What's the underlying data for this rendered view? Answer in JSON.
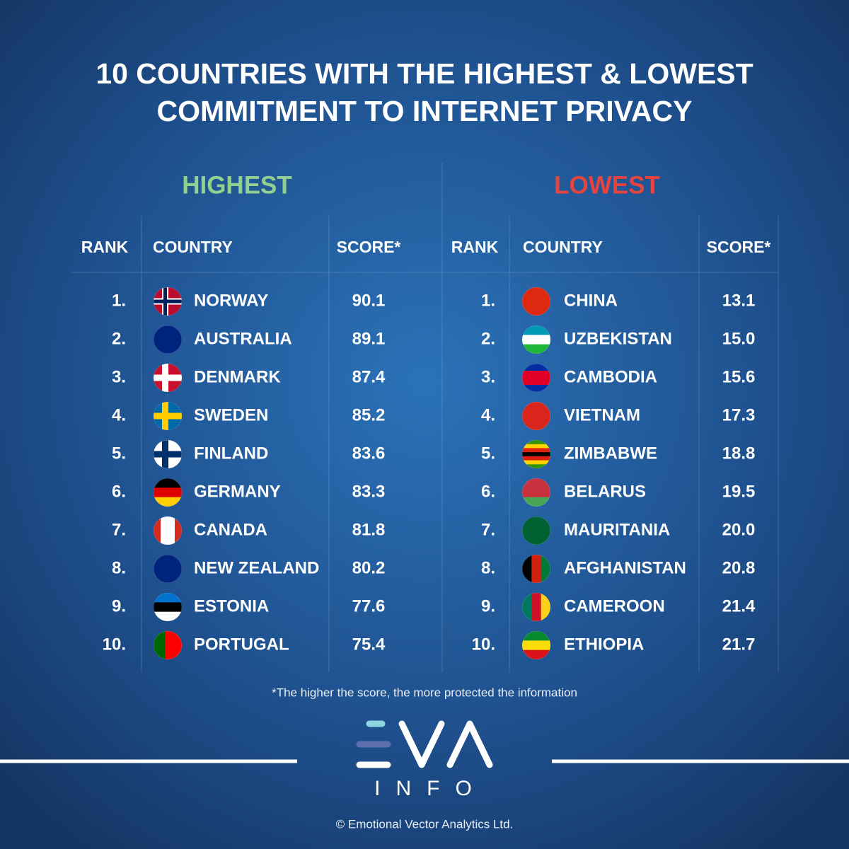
{
  "title": [
    "10 COUNTRIES WITH THE HIGHEST & LOWEST",
    "COMMITMENT TO INTERNET PRIVACY"
  ],
  "tables": [
    {
      "heading": "HIGHEST",
      "columns": [
        "RANK",
        "COUNTRY",
        "SCORE*"
      ],
      "rows": [
        [
          "1.",
          "NORWAY",
          "90.1"
        ],
        [
          "2.",
          "AUSTRALIA",
          "89.1"
        ],
        [
          "3.",
          "DENMARK",
          "87.4"
        ],
        [
          "4.",
          "SWEDEN",
          "85.2"
        ],
        [
          "5.",
          "FINLAND",
          "83.6"
        ],
        [
          "6.",
          "GERMANY",
          "83.3"
        ],
        [
          "7.",
          "CANADA",
          "81.8"
        ],
        [
          "8.",
          "NEW ZEALAND",
          "80.2"
        ],
        [
          "9.",
          "ESTONIA",
          "77.6"
        ],
        [
          "10.",
          "PORTUGAL",
          "75.4"
        ]
      ]
    },
    {
      "heading": "LOWEST",
      "columns": [
        "RANK",
        "COUNTRY",
        "SCORE*"
      ],
      "rows": [
        [
          "1.",
          "CHINA",
          "13.1"
        ],
        [
          "2.",
          "UZBEKISTAN",
          "15.0"
        ],
        [
          "3.",
          "CAMBODIA",
          "15.6"
        ],
        [
          "4.",
          "VIETNAM",
          "17.3"
        ],
        [
          "5.",
          "ZIMBABWE",
          "18.8"
        ],
        [
          "6.",
          "BELARUS",
          "19.5"
        ],
        [
          "7.",
          "MAURITANIA",
          "20.0"
        ],
        [
          "8.",
          "AFGHANISTAN",
          "20.8"
        ],
        [
          "9.",
          "CAMEROON",
          "21.4"
        ],
        [
          "10.",
          "ETHIOPIA",
          "21.7"
        ]
      ]
    }
  ],
  "footnote": "*The higher the score, the more protected the information",
  "logo_subtitle": "INFO",
  "copyright": "© Emotional Vector Analytics Ltd."
}
